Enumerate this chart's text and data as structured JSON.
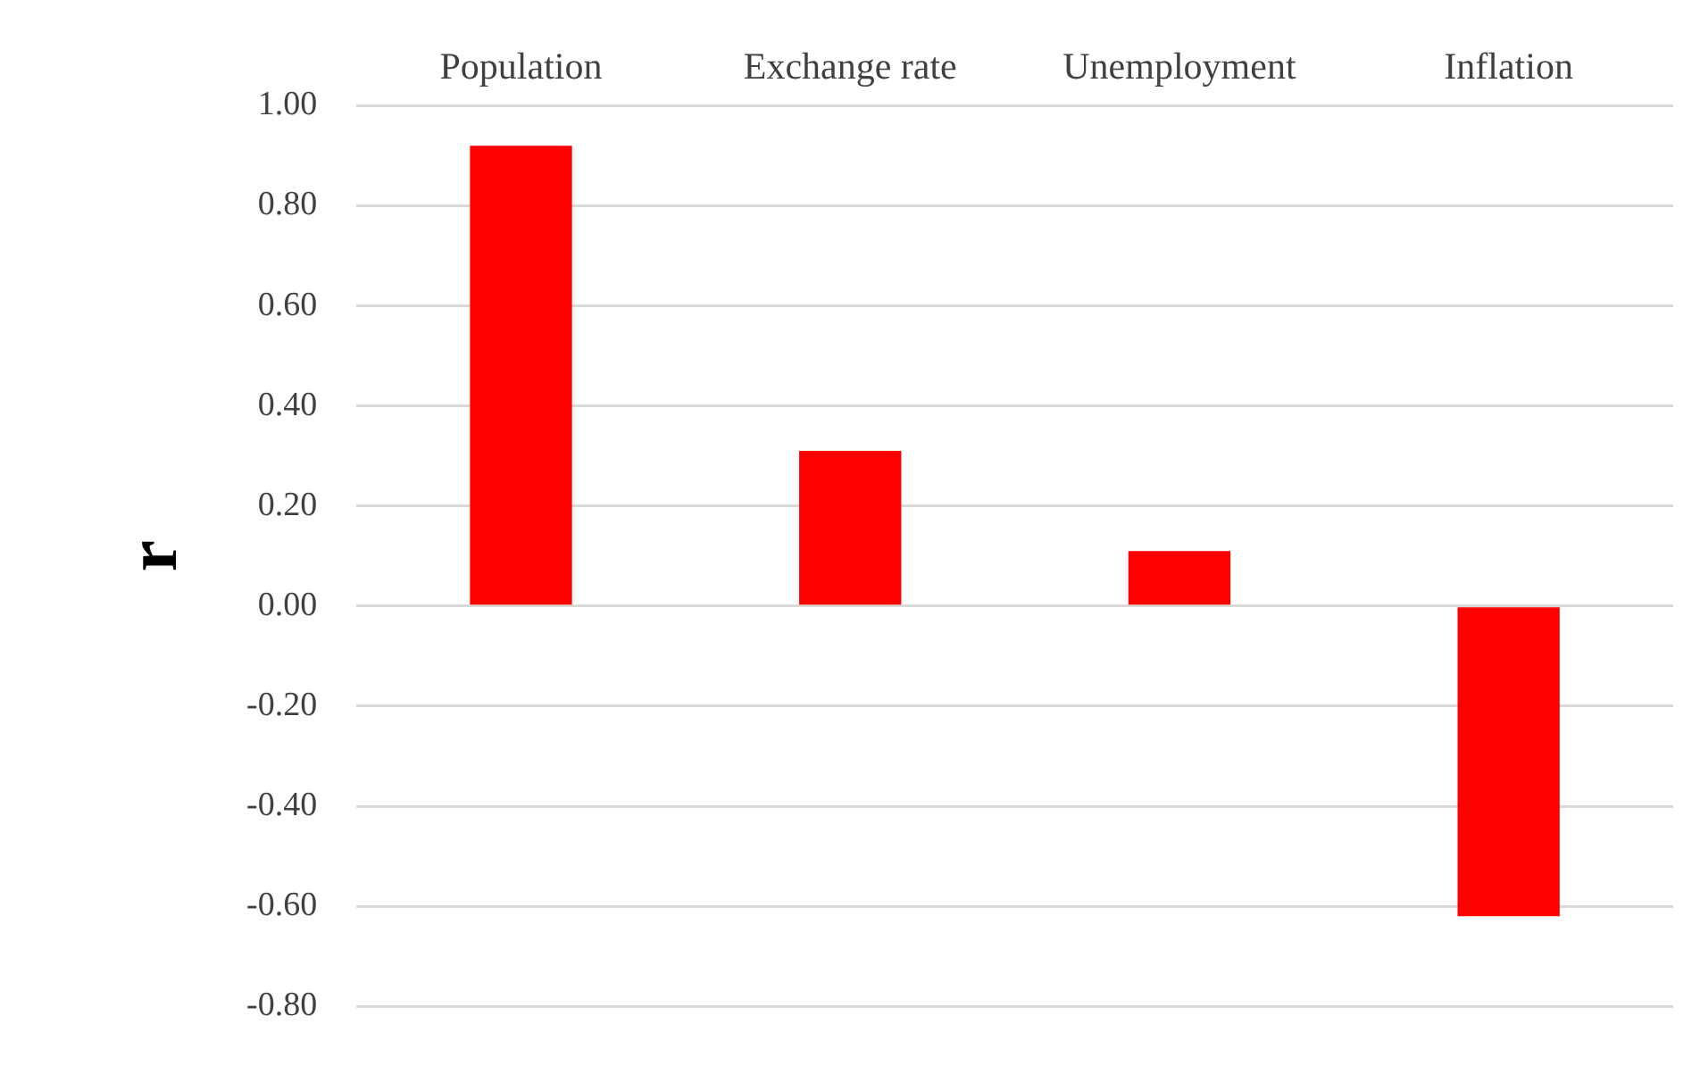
{
  "chart_data": {
    "type": "bar",
    "ylabel": "r",
    "categories": [
      "Population",
      "Exchange rate",
      "Unemployment",
      "Inflation"
    ],
    "values": [
      0.92,
      0.31,
      0.11,
      -0.62
    ],
    "color": "#ff0000",
    "ylim": [
      -0.8,
      1.0
    ],
    "yticks": [
      {
        "value": -0.8,
        "label": "-0.80"
      },
      {
        "value": -0.6,
        "label": "-0.60"
      },
      {
        "value": -0.4,
        "label": "-0.40"
      },
      {
        "value": -0.2,
        "label": "-0.20"
      },
      {
        "value": 0,
        "label": "0.00"
      },
      {
        "value": 0.2,
        "label": "0.20"
      },
      {
        "value": 0.4,
        "label": "0.40"
      },
      {
        "value": 0.6,
        "label": "0.60"
      },
      {
        "value": 0.8,
        "label": "0.80"
      },
      {
        "value": 1.0,
        "label": "1.00"
      }
    ],
    "grid": "y"
  }
}
